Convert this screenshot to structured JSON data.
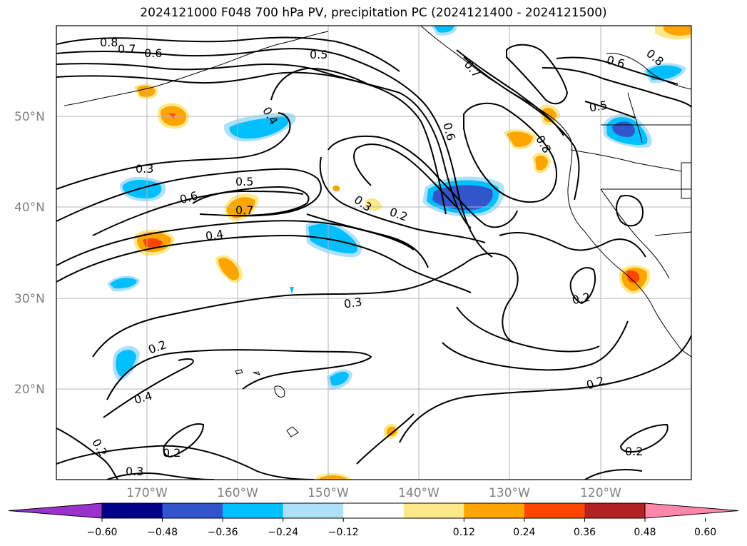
{
  "title": "2024121000 F048 700 hPa PV, precipitation PC (2024121400 - 2024121500)",
  "lat_labels": [
    "50°N",
    "40°N",
    "30°N",
    "20°N"
  ],
  "lon_labels": [
    "170°W",
    "160°W",
    "150°W",
    "140°W",
    "130°W",
    "120°W"
  ],
  "contour_labels": [
    "0.8",
    "0.7",
    "0.6",
    "0.5",
    "0.4",
    "0.3",
    "0.6",
    "0.5",
    "0.7",
    "0.4",
    "0.3",
    "0.2",
    "0.6",
    "0.7",
    "0.8",
    "0.6",
    "0.8",
    "0.5",
    "0.3",
    "0.2",
    "0.4",
    "0.2",
    "0.2",
    "0.2",
    "0.2",
    "0.3",
    "0.2"
  ],
  "colorbar": {
    "ticks": [
      "−0.60",
      "−0.48",
      "−0.36",
      "−0.24",
      "−0.12",
      "0.12",
      "0.24",
      "0.36",
      "0.48",
      "0.60"
    ],
    "colors": [
      "#9933cc",
      "#00008b",
      "#3355cc",
      "#00bfff",
      "#ade1fa",
      "#ffffff",
      "#fde98a",
      "#ffa500",
      "#ff4500",
      "#b22222",
      "#ff88aa"
    ]
  },
  "colors": {
    "neg_weak": "#ade1fa",
    "neg_mid": "#00bfff",
    "neg_strong": "#3355cc",
    "pos_weak": "#fde98a",
    "pos_mid": "#ffa500",
    "pos_strong": "#ff4500"
  }
}
